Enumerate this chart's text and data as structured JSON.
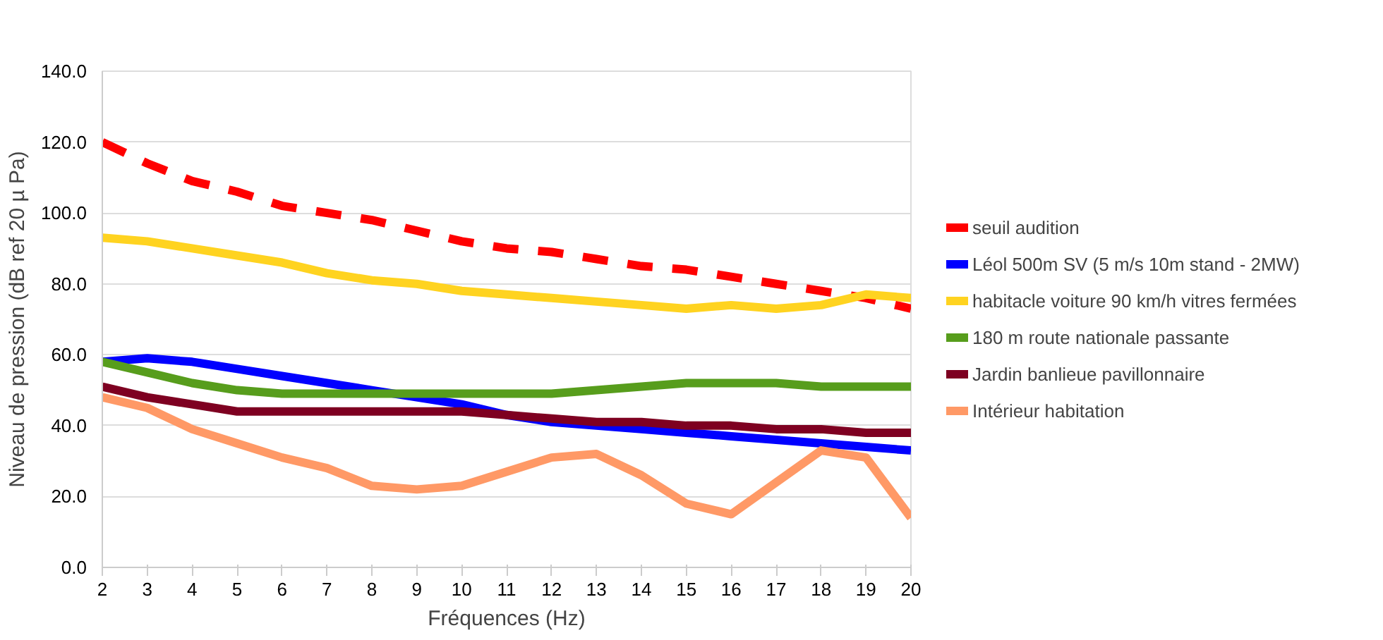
{
  "chart_data": {
    "type": "line",
    "xlabel": "Fréquences (Hz)",
    "ylabel": "Niveau de pression (dB ref 20 µ Pa)",
    "x": [
      2,
      3,
      4,
      5,
      6,
      7,
      8,
      9,
      10,
      11,
      12,
      13,
      14,
      15,
      16,
      17,
      18,
      19,
      20
    ],
    "xlim": [
      2,
      20
    ],
    "xticks": [
      2,
      3,
      4,
      5,
      6,
      7,
      8,
      9,
      10,
      11,
      12,
      13,
      14,
      15,
      16,
      17,
      18,
      19,
      20
    ],
    "ylim": [
      0,
      140
    ],
    "yticks": [
      {
        "value": 0,
        "label": "0.0"
      },
      {
        "value": 20,
        "label": "20.0"
      },
      {
        "value": 40,
        "label": "40.0"
      },
      {
        "value": 60,
        "label": "60.0"
      },
      {
        "value": 80,
        "label": "80.0"
      },
      {
        "value": 100,
        "label": "100.0"
      },
      {
        "value": 120,
        "label": "120.0"
      },
      {
        "value": 140,
        "label": "140.0"
      }
    ],
    "grid": "y",
    "legend": "right",
    "marker": "none",
    "line_style": "solid",
    "series": [
      {
        "name": "seuil audition",
        "color": "#ff0000",
        "line_style": "dashed",
        "values": [
          120,
          114,
          109,
          106,
          102,
          100,
          98,
          95,
          92,
          90,
          89,
          87,
          85,
          84,
          82,
          80,
          78,
          76,
          73
        ]
      },
      {
        "name": "Léol 500m SV (5 m/s 10m stand - 2MW)",
        "color": "#0000ff",
        "values": [
          58,
          59,
          58,
          56,
          54,
          52,
          50,
          48,
          46,
          43,
          41,
          40,
          39,
          38,
          37,
          36,
          35,
          34,
          33
        ]
      },
      {
        "name": "habitacle voiture 90 km/h vitres fermées",
        "color": "#ffd320",
        "values": [
          93,
          92,
          90,
          88,
          86,
          83,
          81,
          80,
          78,
          77,
          76,
          75,
          74,
          73,
          74,
          73,
          74,
          77,
          76
        ]
      },
      {
        "name": "180 m route nationale passante",
        "color": "#579d1c",
        "values": [
          58,
          55,
          52,
          50,
          49,
          49,
          49,
          49,
          49,
          49,
          49,
          50,
          51,
          52,
          52,
          52,
          51,
          51,
          51
        ]
      },
      {
        "name": "Jardin banlieue pavillonnaire",
        "color": "#7e0021",
        "values": [
          51,
          48,
          46,
          44,
          44,
          44,
          44,
          44,
          44,
          43,
          42,
          41,
          41,
          40,
          40,
          39,
          39,
          38,
          38
        ]
      },
      {
        "name": "Intérieur habitation",
        "color": "#ff9966",
        "values": [
          48,
          45,
          39,
          35,
          31,
          28,
          23,
          22,
          23,
          27,
          31,
          32,
          26,
          18,
          15,
          24,
          33,
          31,
          14
        ]
      }
    ]
  }
}
